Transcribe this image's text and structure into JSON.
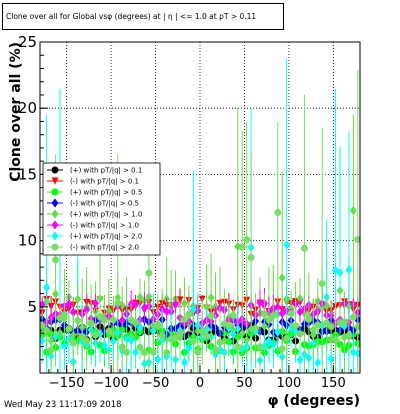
{
  "chart_data": {
    "type": "scatter",
    "title": "Clone  over all for Global vsφ (degrees) at | η | <= 1.0 at pT > 0.11",
    "xlabel": "φ (degrees)",
    "ylabel": "Clone  over all (%)",
    "xlim": [
      -180,
      180
    ],
    "ylim": [
      0,
      25
    ],
    "xticks": [
      -150,
      -100,
      -50,
      0,
      50,
      100,
      150
    ],
    "xtick_labels": [
      "−150",
      "−100",
      "−50",
      "0",
      "50",
      "100",
      "150"
    ],
    "yticks": [
      0,
      5,
      10,
      15,
      20,
      25
    ],
    "ytick_labels": [
      "",
      "5",
      "10",
      "15",
      "20",
      "25"
    ],
    "grid": true,
    "legend_position": "left",
    "series": [
      {
        "name": "(+) with pT/|q| > 0.1",
        "color": "#000000",
        "marker": "circle",
        "base": 3.0,
        "spread": 0.6,
        "err": 0.5
      },
      {
        "name": "(-) with pT/|q| > 0.1",
        "color": "#ff0000",
        "marker": "triangle-down",
        "base": 5.0,
        "spread": 0.6,
        "err": 0.6
      },
      {
        "name": "(+) with pT/|q| > 0.5",
        "color": "#00ff00",
        "marker": "circle",
        "base": 2.4,
        "spread": 0.9,
        "err": 0.8
      },
      {
        "name": "(-) with pT/|q| > 0.5",
        "color": "#0000ff",
        "marker": "diamond",
        "base": 3.5,
        "spread": 0.6,
        "err": 0.6
      },
      {
        "name": "(+) with pT/|q| > 1.0",
        "color": "#66dd44",
        "marker": "diamond",
        "base": 4.2,
        "spread": 1.8,
        "err": 2.5
      },
      {
        "name": "(-) with pT/|q| > 1.0",
        "color": "#ff00ff",
        "marker": "diamond",
        "base": 4.5,
        "spread": 0.8,
        "err": 0.8
      },
      {
        "name": "(+) with pT/|q| > 2.0",
        "color": "#00ffff",
        "marker": "diamond",
        "base": 2.2,
        "spread": 1.5,
        "err": 2.0
      },
      {
        "name": "(-) with pT/|q| > 2.0",
        "color": "#77dd66",
        "marker": "circle",
        "base": 3.0,
        "spread": 1.5,
        "err": 1.8
      }
    ]
  },
  "title": "Clone  over all for Global vsφ (degrees) at | η | <= 1.0 at pT > 0.11",
  "date_stamp": "Wed May 23 11:17:09 2018"
}
